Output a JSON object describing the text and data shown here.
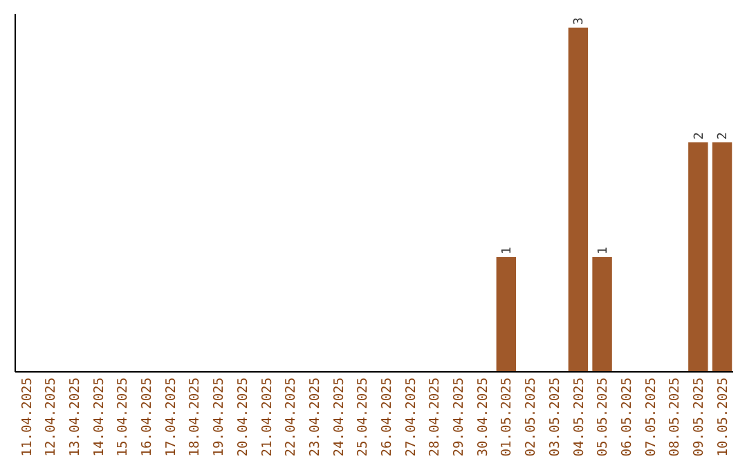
{
  "chart_data": {
    "type": "bar",
    "categories": [
      "11.04.2025",
      "12.04.2025",
      "13.04.2025",
      "14.04.2025",
      "15.04.2025",
      "16.04.2025",
      "17.04.2025",
      "18.04.2025",
      "19.04.2025",
      "20.04.2025",
      "21.04.2025",
      "22.04.2025",
      "23.04.2025",
      "24.04.2025",
      "25.04.2025",
      "26.04.2025",
      "27.04.2025",
      "28.04.2025",
      "29.04.2025",
      "30.04.2025",
      "01.05.2025",
      "02.05.2025",
      "03.05.2025",
      "04.05.2025",
      "05.05.2025",
      "06.05.2025",
      "07.05.2025",
      "08.05.2025",
      "09.05.2025",
      "10.05.2025"
    ],
    "values": [
      null,
      null,
      null,
      null,
      null,
      null,
      null,
      null,
      null,
      null,
      null,
      null,
      null,
      null,
      null,
      null,
      null,
      null,
      null,
      null,
      1,
      null,
      null,
      3,
      1,
      null,
      null,
      null,
      2,
      2
    ],
    "color": "#a0592a",
    "data_labels": true
  }
}
